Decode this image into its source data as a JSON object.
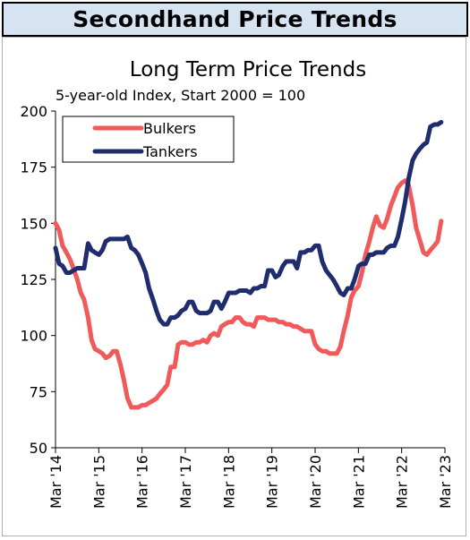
{
  "header": {
    "title": "Secondhand Price Trends"
  },
  "colors": {
    "banner_bg": "#d6e4f1",
    "bulkers": "#f05a5a",
    "tankers": "#1f2d6e"
  },
  "chart_data": {
    "type": "line",
    "title": "Long Term Price Trends",
    "subtitle": "5-year-old Index, Start 2000 = 100",
    "xlabel": "",
    "ylabel": "",
    "ylim": [
      50,
      200
    ],
    "yticks": [
      50,
      75,
      100,
      125,
      150,
      175,
      200
    ],
    "xlim": [
      2014.167,
      2023.167
    ],
    "xticks": [
      {
        "label": "Mar '14",
        "x": 2014.167
      },
      {
        "label": "Mar '15",
        "x": 2015.167
      },
      {
        "label": "Mar '16",
        "x": 2016.167
      },
      {
        "label": "Mar '17",
        "x": 2017.167
      },
      {
        "label": "Mar '18",
        "x": 2018.167
      },
      {
        "label": "Mar '19",
        "x": 2019.167
      },
      {
        "label": "Mar '20",
        "x": 2020.167
      },
      {
        "label": "Mar '21",
        "x": 2021.167
      },
      {
        "label": "Mar '22",
        "x": 2022.167
      },
      {
        "label": "Mar '23",
        "x": 2023.167
      }
    ],
    "grid": false,
    "legend_position": "top-left",
    "series": [
      {
        "name": "Bulkers",
        "color": "#f05a5a",
        "points": [
          [
            2014.167,
            150
          ],
          [
            2014.25,
            147
          ],
          [
            2014.33,
            140
          ],
          [
            2014.42,
            137
          ],
          [
            2014.5,
            134
          ],
          [
            2014.58,
            130
          ],
          [
            2014.67,
            125
          ],
          [
            2014.75,
            119
          ],
          [
            2014.83,
            116
          ],
          [
            2014.92,
            108
          ],
          [
            2015.0,
            98
          ],
          [
            2015.08,
            94
          ],
          [
            2015.17,
            93
          ],
          [
            2015.25,
            92
          ],
          [
            2015.33,
            90
          ],
          [
            2015.42,
            91
          ],
          [
            2015.5,
            93
          ],
          [
            2015.58,
            93
          ],
          [
            2015.67,
            87
          ],
          [
            2015.75,
            80
          ],
          [
            2015.83,
            72
          ],
          [
            2015.92,
            68
          ],
          [
            2016.0,
            68
          ],
          [
            2016.08,
            68
          ],
          [
            2016.17,
            69
          ],
          [
            2016.25,
            69
          ],
          [
            2016.33,
            70
          ],
          [
            2016.42,
            71
          ],
          [
            2016.5,
            72
          ],
          [
            2016.58,
            74
          ],
          [
            2016.67,
            76
          ],
          [
            2016.75,
            78
          ],
          [
            2016.83,
            86
          ],
          [
            2016.92,
            86
          ],
          [
            2017.0,
            96
          ],
          [
            2017.08,
            97
          ],
          [
            2017.17,
            97
          ],
          [
            2017.25,
            96
          ],
          [
            2017.33,
            96
          ],
          [
            2017.42,
            97
          ],
          [
            2017.5,
            97
          ],
          [
            2017.58,
            98
          ],
          [
            2017.67,
            97
          ],
          [
            2017.75,
            100
          ],
          [
            2017.83,
            101
          ],
          [
            2017.92,
            100
          ],
          [
            2018.0,
            104
          ],
          [
            2018.08,
            105
          ],
          [
            2018.17,
            106
          ],
          [
            2018.25,
            106
          ],
          [
            2018.33,
            108
          ],
          [
            2018.42,
            108
          ],
          [
            2018.5,
            106
          ],
          [
            2018.58,
            105
          ],
          [
            2018.67,
            105
          ],
          [
            2018.75,
            104
          ],
          [
            2018.83,
            108
          ],
          [
            2018.92,
            108
          ],
          [
            2019.0,
            108
          ],
          [
            2019.08,
            107
          ],
          [
            2019.17,
            107
          ],
          [
            2019.25,
            107
          ],
          [
            2019.33,
            106
          ],
          [
            2019.42,
            106
          ],
          [
            2019.5,
            105
          ],
          [
            2019.58,
            105
          ],
          [
            2019.67,
            104
          ],
          [
            2019.75,
            104
          ],
          [
            2019.83,
            103
          ],
          [
            2019.92,
            102
          ],
          [
            2020.0,
            102
          ],
          [
            2020.08,
            102
          ],
          [
            2020.17,
            96
          ],
          [
            2020.25,
            94
          ],
          [
            2020.33,
            93
          ],
          [
            2020.42,
            93
          ],
          [
            2020.5,
            92
          ],
          [
            2020.58,
            92
          ],
          [
            2020.67,
            92
          ],
          [
            2020.75,
            95
          ],
          [
            2020.83,
            102
          ],
          [
            2020.92,
            109
          ],
          [
            2021.0,
            117
          ],
          [
            2021.08,
            120
          ],
          [
            2021.17,
            122
          ],
          [
            2021.25,
            128
          ],
          [
            2021.33,
            136
          ],
          [
            2021.42,
            142
          ],
          [
            2021.5,
            148
          ],
          [
            2021.58,
            153
          ],
          [
            2021.67,
            149
          ],
          [
            2021.75,
            148
          ],
          [
            2021.83,
            152
          ],
          [
            2021.92,
            158
          ],
          [
            2022.0,
            162
          ],
          [
            2022.08,
            166
          ],
          [
            2022.17,
            168
          ],
          [
            2022.25,
            169
          ],
          [
            2022.33,
            167
          ],
          [
            2022.42,
            158
          ],
          [
            2022.5,
            148
          ],
          [
            2022.58,
            143
          ],
          [
            2022.67,
            137
          ],
          [
            2022.75,
            136
          ],
          [
            2022.83,
            138
          ],
          [
            2022.92,
            140
          ],
          [
            2023.0,
            142
          ],
          [
            2023.08,
            151
          ]
        ]
      },
      {
        "name": "Tankers",
        "color": "#1f2d6e",
        "points": [
          [
            2014.167,
            139
          ],
          [
            2014.25,
            132
          ],
          [
            2014.33,
            131
          ],
          [
            2014.42,
            128
          ],
          [
            2014.5,
            128
          ],
          [
            2014.58,
            129
          ],
          [
            2014.67,
            130
          ],
          [
            2014.75,
            130
          ],
          [
            2014.83,
            130
          ],
          [
            2014.92,
            141
          ],
          [
            2015.0,
            138
          ],
          [
            2015.08,
            137
          ],
          [
            2015.17,
            136
          ],
          [
            2015.25,
            138
          ],
          [
            2015.33,
            142
          ],
          [
            2015.42,
            143
          ],
          [
            2015.5,
            143
          ],
          [
            2015.58,
            143
          ],
          [
            2015.67,
            143
          ],
          [
            2015.75,
            143
          ],
          [
            2015.83,
            144
          ],
          [
            2015.92,
            139
          ],
          [
            2016.0,
            138
          ],
          [
            2016.08,
            136
          ],
          [
            2016.17,
            132
          ],
          [
            2016.25,
            128
          ],
          [
            2016.33,
            121
          ],
          [
            2016.42,
            116
          ],
          [
            2016.5,
            111
          ],
          [
            2016.58,
            107
          ],
          [
            2016.67,
            105
          ],
          [
            2016.75,
            105
          ],
          [
            2016.83,
            108
          ],
          [
            2016.92,
            108
          ],
          [
            2017.0,
            109
          ],
          [
            2017.08,
            111
          ],
          [
            2017.17,
            112
          ],
          [
            2017.25,
            115
          ],
          [
            2017.33,
            115
          ],
          [
            2017.42,
            111
          ],
          [
            2017.5,
            110
          ],
          [
            2017.58,
            110
          ],
          [
            2017.67,
            110
          ],
          [
            2017.75,
            111
          ],
          [
            2017.83,
            115
          ],
          [
            2017.92,
            115
          ],
          [
            2018.0,
            112
          ],
          [
            2018.08,
            115
          ],
          [
            2018.17,
            119
          ],
          [
            2018.25,
            119
          ],
          [
            2018.33,
            119
          ],
          [
            2018.42,
            120
          ],
          [
            2018.5,
            120
          ],
          [
            2018.58,
            120
          ],
          [
            2018.67,
            119
          ],
          [
            2018.75,
            121
          ],
          [
            2018.83,
            121
          ],
          [
            2018.92,
            122
          ],
          [
            2019.0,
            122
          ],
          [
            2019.08,
            129
          ],
          [
            2019.17,
            129
          ],
          [
            2019.25,
            126
          ],
          [
            2019.33,
            127
          ],
          [
            2019.42,
            131
          ],
          [
            2019.5,
            133
          ],
          [
            2019.58,
            133
          ],
          [
            2019.67,
            133
          ],
          [
            2019.75,
            130
          ],
          [
            2019.83,
            137
          ],
          [
            2019.92,
            137
          ],
          [
            2020.0,
            138
          ],
          [
            2020.08,
            138
          ],
          [
            2020.17,
            140
          ],
          [
            2020.25,
            140
          ],
          [
            2020.33,
            133
          ],
          [
            2020.42,
            129
          ],
          [
            2020.5,
            127
          ],
          [
            2020.58,
            125
          ],
          [
            2020.67,
            122
          ],
          [
            2020.75,
            119
          ],
          [
            2020.83,
            118
          ],
          [
            2020.92,
            121
          ],
          [
            2021.0,
            121
          ],
          [
            2021.08,
            125
          ],
          [
            2021.17,
            131
          ],
          [
            2021.25,
            132
          ],
          [
            2021.33,
            132
          ],
          [
            2021.42,
            136
          ],
          [
            2021.5,
            136
          ],
          [
            2021.58,
            137
          ],
          [
            2021.67,
            137
          ],
          [
            2021.75,
            137
          ],
          [
            2021.83,
            139
          ],
          [
            2021.92,
            140
          ],
          [
            2022.0,
            140
          ],
          [
            2022.08,
            144
          ],
          [
            2022.17,
            152
          ],
          [
            2022.25,
            160
          ],
          [
            2022.33,
            170
          ],
          [
            2022.42,
            178
          ],
          [
            2022.5,
            181
          ],
          [
            2022.58,
            183
          ],
          [
            2022.67,
            185
          ],
          [
            2022.75,
            186
          ],
          [
            2022.83,
            193
          ],
          [
            2022.92,
            194
          ],
          [
            2023.0,
            194
          ],
          [
            2023.08,
            195
          ]
        ]
      }
    ]
  }
}
